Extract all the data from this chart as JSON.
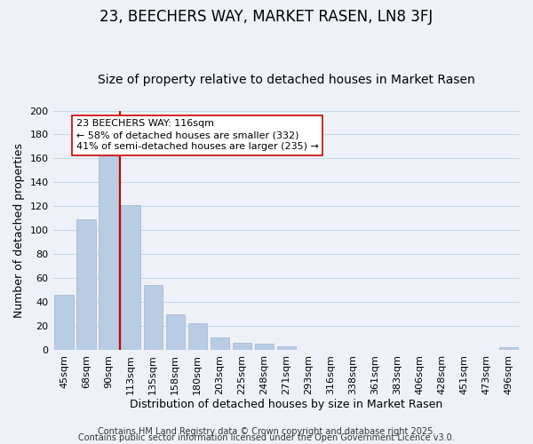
{
  "title": "23, BEECHERS WAY, MARKET RASEN, LN8 3FJ",
  "subtitle": "Size of property relative to detached houses in Market Rasen",
  "xlabel": "Distribution of detached houses by size in Market Rasen",
  "ylabel": "Number of detached properties",
  "bar_values": [
    46,
    109,
    166,
    121,
    54,
    30,
    22,
    10,
    6,
    5,
    3,
    0,
    0,
    0,
    0,
    0,
    0,
    0,
    0,
    0,
    2
  ],
  "categories": [
    "45sqm",
    "68sqm",
    "90sqm",
    "113sqm",
    "135sqm",
    "158sqm",
    "180sqm",
    "203sqm",
    "225sqm",
    "248sqm",
    "271sqm",
    "293sqm",
    "316sqm",
    "338sqm",
    "361sqm",
    "383sqm",
    "406sqm",
    "428sqm",
    "451sqm",
    "473sqm",
    "496sqm"
  ],
  "bar_color": "#b8cce4",
  "bar_edge_color": "#aabbd4",
  "vline_color": "#cc0000",
  "vline_pos": 2.5,
  "annotation_title": "23 BEECHERS WAY: 116sqm",
  "annotation_line1": "← 58% of detached houses are smaller (332)",
  "annotation_line2": "41% of semi-detached houses are larger (235) →",
  "annotation_box_facecolor": "#ffffff",
  "annotation_box_edgecolor": "#cc0000",
  "ylim": [
    0,
    200
  ],
  "yticks": [
    0,
    20,
    40,
    60,
    80,
    100,
    120,
    140,
    160,
    180,
    200
  ],
  "grid_color": "#c8d8e8",
  "footer1": "Contains HM Land Registry data © Crown copyright and database right 2025.",
  "footer2": "Contains public sector information licensed under the Open Government Licence v3.0.",
  "background_color": "#eef2f8",
  "title_fontsize": 12,
  "subtitle_fontsize": 10,
  "axis_label_fontsize": 9,
  "tick_fontsize": 8,
  "annotation_fontsize": 8,
  "footer_fontsize": 7
}
